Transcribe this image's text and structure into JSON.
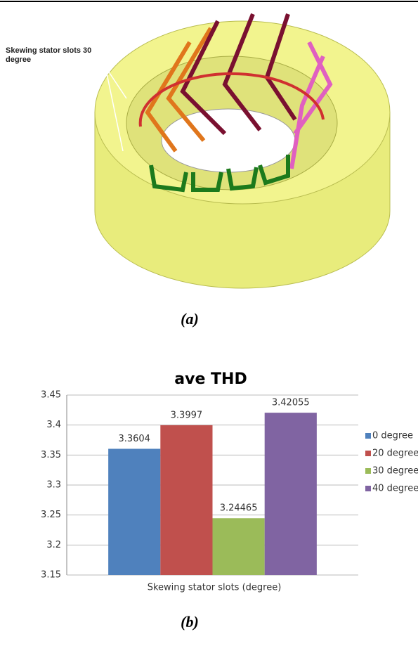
{
  "figure_a": {
    "annotation": "Skewing stator slots 30 degree",
    "caption": "(a)"
  },
  "chart_data": {
    "type": "bar",
    "title": "ave THD",
    "xlabel": "Skewing stator slots (degree)",
    "categories": [
      null
    ],
    "series": [
      {
        "name": "0 degree",
        "color": "#4f81bd",
        "values": [
          3.3604
        ]
      },
      {
        "name": "20 degree",
        "color": "#c0504d",
        "values": [
          3.3997
        ]
      },
      {
        "name": "30 degree",
        "color": "#9bbb59",
        "values": [
          3.24465
        ]
      },
      {
        "name": "40 degree",
        "color": "#8064a2",
        "values": [
          3.42055
        ]
      }
    ],
    "ylim": [
      3.15,
      3.45
    ],
    "yticks": [
      3.15,
      3.2,
      3.25,
      3.3,
      3.35,
      3.4,
      3.45
    ],
    "grid": true,
    "legend": "right"
  },
  "figure_b": {
    "caption": "(b)"
  }
}
